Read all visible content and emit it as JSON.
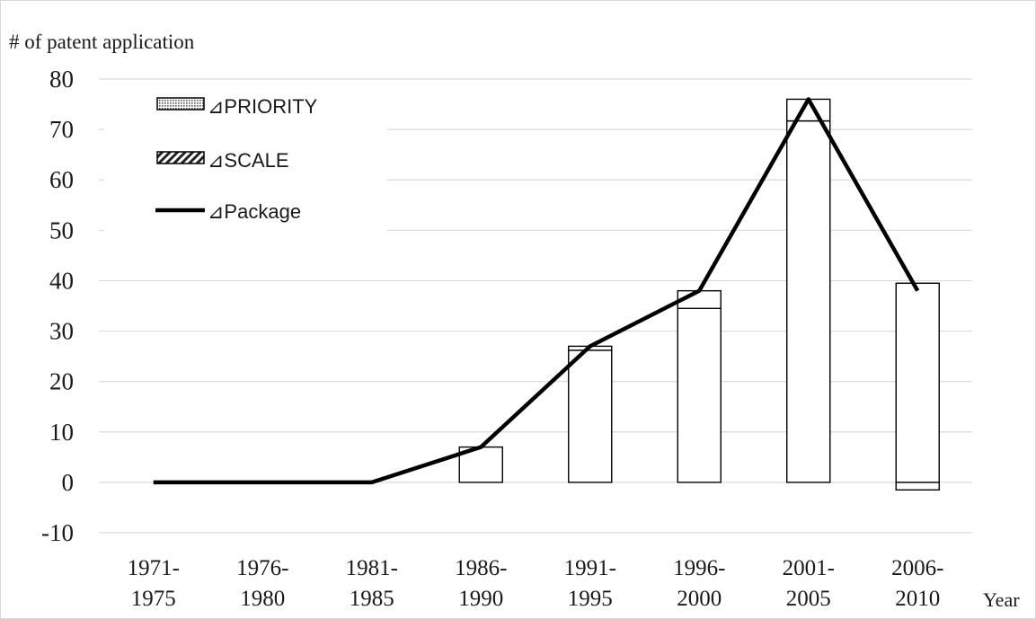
{
  "chart_data": {
    "type": "bar",
    "ylabel": "# of patent application",
    "xlabel": "Year",
    "ylim": [
      -10,
      80
    ],
    "yticks": [
      -10,
      0,
      10,
      20,
      30,
      40,
      50,
      60,
      70,
      80
    ],
    "grid": true,
    "legend_position": "top-left",
    "categories": [
      [
        "1971-",
        "1975"
      ],
      [
        "1976-",
        "1980"
      ],
      [
        "1981-",
        "1985"
      ],
      [
        "1986-",
        "1990"
      ],
      [
        "1991-",
        "1995"
      ],
      [
        "1996-",
        "2000"
      ],
      [
        "2001-",
        "2005"
      ],
      [
        "2006-",
        "2010"
      ]
    ],
    "series": [
      {
        "name": "⊿PRIORITY",
        "kind": "bar",
        "pattern": "dotted",
        "values": [
          0,
          0,
          0,
          0,
          0,
          0,
          0,
          0
        ]
      },
      {
        "name": "⊿SCALE",
        "kind": "bar",
        "pattern": "hatched",
        "values": [
          0,
          0,
          0,
          7,
          26.2,
          34.5,
          71.7,
          -1.5
        ]
      },
      {
        "name": "⊿Package",
        "kind": "line",
        "values": [
          0,
          0,
          0,
          7,
          27,
          38,
          76,
          38
        ]
      }
    ],
    "stack_top": [
      0,
      0,
      0,
      7,
      27,
      38,
      76,
      39.5
    ]
  }
}
